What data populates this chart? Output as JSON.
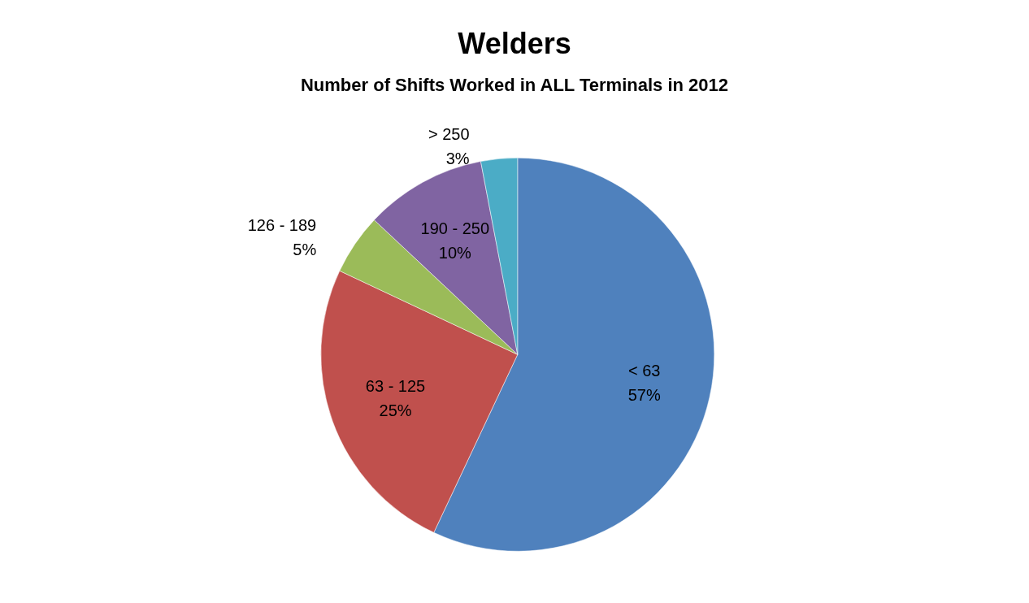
{
  "chart_data": {
    "type": "pie",
    "title": "Welders",
    "subtitle": "Number of Shifts Worked in ALL Terminals in 2012",
    "categories": [
      "< 63",
      "63 - 125",
      "126 - 189",
      "190 - 250",
      "> 250"
    ],
    "values": [
      57,
      25,
      5,
      10,
      3
    ],
    "colors": [
      "#4f81bd",
      "#c0504d",
      "#9bbb59",
      "#8064a2",
      "#4bacc6"
    ],
    "value_labels": [
      "57%",
      "25%",
      "5%",
      "10%",
      "3%"
    ],
    "legend": false
  }
}
